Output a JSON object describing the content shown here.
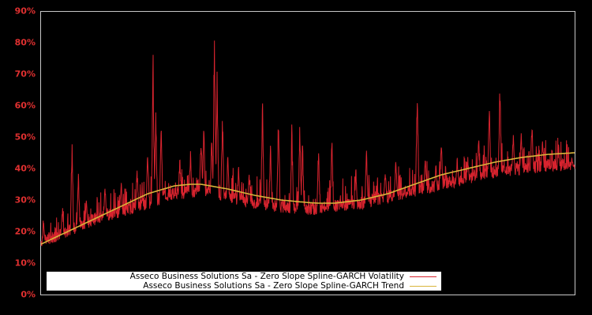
{
  "chart_data": {
    "type": "line",
    "title": "",
    "xlabel": "",
    "ylabel": "",
    "ylim": [
      0,
      90
    ],
    "yticks": [
      "0%",
      "10%",
      "20%",
      "30%",
      "40%",
      "50%",
      "60%",
      "70%",
      "80%",
      "90%"
    ],
    "grid": false,
    "legend_position": "lower-left",
    "series": [
      {
        "name": "Asseco Business Solutions Sa - Zero Slope Spline-GARCH Volatility",
        "color": "#d7232e",
        "baseline_pct": [
          [
            0,
            15
          ],
          [
            0.05,
            18
          ],
          [
            0.1,
            22
          ],
          [
            0.2,
            27
          ],
          [
            0.25,
            30
          ],
          [
            0.3,
            31
          ],
          [
            0.35,
            29
          ],
          [
            0.4,
            27
          ],
          [
            0.45,
            26
          ],
          [
            0.5,
            25
          ],
          [
            0.55,
            26
          ],
          [
            0.6,
            27
          ],
          [
            0.65,
            29
          ],
          [
            0.7,
            31
          ],
          [
            0.75,
            33
          ],
          [
            0.8,
            35
          ],
          [
            0.85,
            37
          ],
          [
            0.9,
            38
          ],
          [
            0.95,
            39
          ],
          [
            1,
            39
          ]
        ],
        "spikes_pct": [
          [
            0.005,
            24
          ],
          [
            0.04,
            29
          ],
          [
            0.058,
            52
          ],
          [
            0.07,
            41
          ],
          [
            0.085,
            31
          ],
          [
            0.12,
            36
          ],
          [
            0.15,
            37
          ],
          [
            0.18,
            42
          ],
          [
            0.2,
            48
          ],
          [
            0.2,
            47
          ],
          [
            0.2,
            33
          ],
          [
            0.21,
            78
          ],
          [
            0.215,
            63
          ],
          [
            0.225,
            60
          ],
          [
            0.26,
            45
          ],
          [
            0.28,
            47
          ],
          [
            0.3,
            53
          ],
          [
            0.305,
            55
          ],
          [
            0.32,
            53
          ],
          [
            0.325,
            89
          ],
          [
            0.33,
            73
          ],
          [
            0.34,
            60
          ],
          [
            0.35,
            45
          ],
          [
            0.37,
            42
          ],
          [
            0.39,
            40
          ],
          [
            0.415,
            63
          ],
          [
            0.43,
            51
          ],
          [
            0.445,
            61
          ],
          [
            0.47,
            56
          ],
          [
            0.485,
            58
          ],
          [
            0.49,
            51
          ],
          [
            0.52,
            48
          ],
          [
            0.545,
            52
          ],
          [
            0.59,
            41
          ],
          [
            0.61,
            49
          ],
          [
            0.645,
            42
          ],
          [
            0.665,
            45
          ],
          [
            0.705,
            69
          ],
          [
            0.72,
            47
          ],
          [
            0.74,
            42
          ],
          [
            0.75,
            51
          ],
          [
            0.78,
            44
          ],
          [
            0.8,
            44
          ],
          [
            0.82,
            52
          ],
          [
            0.84,
            62
          ],
          [
            0.86,
            69
          ],
          [
            0.885,
            52
          ],
          [
            0.9,
            53
          ],
          [
            0.92,
            56
          ],
          [
            0.94,
            51
          ],
          [
            0.95,
            41
          ],
          [
            0.97,
            48
          ],
          [
            0.98,
            38
          ],
          [
            0.985,
            39
          ],
          [
            0.995,
            44
          ]
        ]
      },
      {
        "name": "Asseco Business Solutions Sa - Zero Slope Spline-GARCH Trend",
        "color": "#d9b43a",
        "points_pct": [
          [
            0,
            16
          ],
          [
            0.05,
            20
          ],
          [
            0.1,
            24
          ],
          [
            0.15,
            28
          ],
          [
            0.2,
            32
          ],
          [
            0.25,
            34.5
          ],
          [
            0.28,
            35
          ],
          [
            0.3,
            35
          ],
          [
            0.35,
            33.5
          ],
          [
            0.4,
            31.5
          ],
          [
            0.45,
            30
          ],
          [
            0.5,
            29.2
          ],
          [
            0.52,
            29
          ],
          [
            0.55,
            29
          ],
          [
            0.6,
            30
          ],
          [
            0.65,
            32
          ],
          [
            0.7,
            35
          ],
          [
            0.75,
            38
          ],
          [
            0.8,
            40
          ],
          [
            0.85,
            42
          ],
          [
            0.9,
            43.5
          ],
          [
            0.95,
            44.5
          ],
          [
            1,
            45
          ]
        ]
      }
    ]
  },
  "legend": {
    "items": [
      {
        "label": "Asseco Business Solutions Sa - Zero Slope Spline-GARCH Volatility",
        "color": "#d7232e"
      },
      {
        "label": "Asseco Business Solutions Sa - Zero Slope Spline-GARCH Trend",
        "color": "#d9b43a"
      }
    ]
  },
  "colors": {
    "background": "#000000",
    "axis_frame": "#c8c8c8",
    "tick_label": "#e03030"
  }
}
